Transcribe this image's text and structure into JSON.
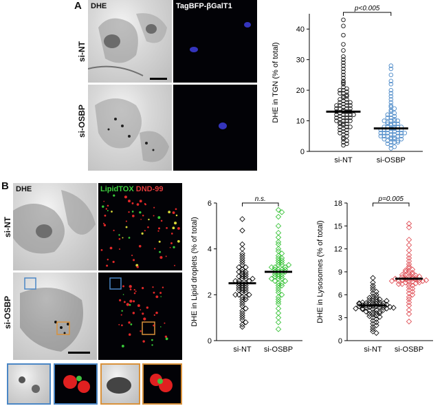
{
  "panelA": {
    "letter": "A",
    "col1_label": "DHE",
    "col2_label": "TagBFP-βGalT1",
    "row1_label": "si-NT",
    "row2_label": "si-OSBP"
  },
  "panelB": {
    "letter": "B",
    "col1_label": "DHE",
    "col2_label_green": "LipidTOX",
    "col2_label_red": "DND-99",
    "row1_label": "si-NT",
    "row2_label": "si-OSBP"
  },
  "colors": {
    "siNT": "#111111",
    "siOSBP_blue": "#4a88c7",
    "siOSBP_green": "#3ec43e",
    "siOSBP_red": "#e0535a",
    "inset_blue": "#4a86c5",
    "inset_orange": "#d9913a"
  },
  "chart_data": [
    {
      "type": "scatter",
      "id": "tgn",
      "categories": [
        "si-NT",
        "si-OSBP"
      ],
      "ylabel": "DHE in TGN (% of total)",
      "ylim": [
        0,
        45
      ],
      "yticks": [
        0,
        10,
        20,
        30,
        40
      ],
      "annotation": "p<0.005",
      "means": [
        13,
        7.5
      ],
      "series": [
        {
          "name": "si-NT",
          "values": [
            43,
            41,
            38,
            35,
            33,
            31,
            30,
            29,
            28,
            27,
            26,
            25,
            24,
            23,
            22.5,
            22,
            21,
            20.5,
            20,
            19.5,
            19,
            18.5,
            18,
            17.5,
            17,
            16.5,
            16,
            16,
            15.5,
            15,
            15,
            14.5,
            14,
            14,
            13.5,
            13,
            13,
            12.5,
            12,
            12,
            11.5,
            11,
            11,
            10.5,
            10,
            10,
            9.5,
            9,
            9,
            8.5,
            8,
            8,
            7.5,
            7,
            7,
            6.5,
            6,
            6,
            5.5,
            5,
            4.5,
            4,
            3.5,
            3,
            2.5,
            2,
            14,
            13,
            12,
            11,
            15,
            16,
            17,
            12,
            13,
            10,
            9,
            8,
            11,
            14,
            18,
            19,
            20,
            15,
            12,
            10
          ]
        },
        {
          "name": "si-OSBP",
          "values": [
            28,
            27,
            25,
            23,
            22,
            20,
            19,
            18,
            17,
            16,
            15,
            14.5,
            14,
            13.5,
            13,
            12.5,
            12,
            11.5,
            11,
            10.5,
            10,
            10,
            9.5,
            9,
            9,
            8.5,
            8,
            8,
            7.5,
            7.5,
            7,
            7,
            6.5,
            6.5,
            6,
            6,
            5.5,
            5.5,
            5,
            5,
            4.5,
            4.5,
            4,
            4,
            3.5,
            3.5,
            3,
            3,
            2.5,
            2,
            1.5,
            1,
            8,
            7,
            6,
            5,
            9,
            10,
            11,
            6,
            7,
            8,
            5,
            4,
            3,
            6,
            7,
            8,
            9,
            10,
            12,
            4,
            5,
            6
          ]
        }
      ]
    },
    {
      "type": "scatter",
      "id": "ld",
      "categories": [
        "si-NT",
        "si-OSBP"
      ],
      "ylabel": "DHE in Lipid droplets (% of total)",
      "ylim": [
        0,
        6
      ],
      "yticks": [
        0,
        2,
        4,
        6
      ],
      "annotation": "n.s.",
      "means": [
        2.5,
        3.0
      ],
      "series": [
        {
          "name": "si-NT",
          "values": [
            5.3,
            4.8,
            4.2,
            4.0,
            3.8,
            3.7,
            3.6,
            3.5,
            3.4,
            3.3,
            3.2,
            3.1,
            3.0,
            3.0,
            2.9,
            2.8,
            2.8,
            2.7,
            2.7,
            2.6,
            2.6,
            2.5,
            2.5,
            2.4,
            2.4,
            2.3,
            2.3,
            2.2,
            2.2,
            2.1,
            2.1,
            2.0,
            2.0,
            1.9,
            1.8,
            1.7,
            1.6,
            1.5,
            1.4,
            1.3,
            1.2,
            1.1,
            1.0,
            0.9,
            0.8,
            0.7,
            0.6,
            2.5,
            2.6,
            2.8,
            3.0,
            2.4,
            2.2,
            1.8,
            3.2,
            2.9,
            2.0,
            2.7,
            2.3,
            1.9
          ]
        },
        {
          "name": "si-OSBP",
          "values": [
            5.7,
            5.6,
            5.4,
            5.0,
            4.7,
            4.5,
            4.3,
            4.2,
            4.0,
            3.9,
            3.8,
            3.7,
            3.6,
            3.5,
            3.4,
            3.3,
            3.3,
            3.2,
            3.2,
            3.1,
            3.1,
            3.0,
            3.0,
            2.9,
            2.9,
            2.8,
            2.8,
            2.7,
            2.7,
            2.6,
            2.5,
            2.4,
            2.3,
            2.2,
            2.1,
            2.0,
            1.9,
            1.8,
            1.7,
            1.6,
            1.4,
            1.2,
            1.0,
            0.8,
            0.5,
            3.0,
            3.1,
            3.2,
            2.8,
            2.9,
            3.4,
            3.5,
            2.6,
            2.5,
            3.6,
            2.4,
            3.0,
            3.3,
            2.7,
            3.1
          ]
        }
      ]
    },
    {
      "type": "scatter",
      "id": "lyso",
      "categories": [
        "si-NT",
        "si-OSBP"
      ],
      "ylabel": "DHE in Lysosomes (% of total)",
      "ylim": [
        0,
        18
      ],
      "yticks": [
        0,
        3,
        6,
        9,
        12,
        15,
        18
      ],
      "annotation": "p=0.005",
      "means": [
        4.6,
        8.1
      ],
      "series": [
        {
          "name": "si-NT",
          "values": [
            8.2,
            7.6,
            7.2,
            6.9,
            6.6,
            6.4,
            6.2,
            6.0,
            5.8,
            5.7,
            5.6,
            5.5,
            5.4,
            5.3,
            5.2,
            5.1,
            5.0,
            5.0,
            4.9,
            4.9,
            4.8,
            4.8,
            4.7,
            4.7,
            4.6,
            4.6,
            4.5,
            4.5,
            4.4,
            4.4,
            4.3,
            4.3,
            4.2,
            4.2,
            4.1,
            4.0,
            3.9,
            3.8,
            3.7,
            3.6,
            3.5,
            3.4,
            3.3,
            3.2,
            3.1,
            3.0,
            2.8,
            2.6,
            2.4,
            2.2,
            2.0,
            1.8,
            1.5,
            1.2,
            1.0,
            4.6,
            4.7,
            4.5,
            4.8,
            4.4,
            5.0,
            4.2,
            3.8,
            5.2,
            4.0,
            4.9,
            4.3,
            3.6,
            5.4,
            4.1
          ]
        },
        {
          "name": "si-OSBP",
          "values": [
            15.3,
            14.8,
            13.2,
            12.5,
            11.8,
            11.2,
            10.8,
            10.4,
            10.0,
            9.7,
            9.5,
            9.3,
            9.1,
            8.9,
            8.8,
            8.7,
            8.6,
            8.5,
            8.4,
            8.3,
            8.2,
            8.2,
            8.1,
            8.1,
            8.0,
            8.0,
            7.9,
            7.9,
            7.8,
            7.8,
            7.7,
            7.7,
            7.6,
            7.5,
            7.4,
            7.3,
            7.2,
            7.0,
            6.8,
            6.6,
            6.4,
            6.2,
            6.0,
            5.7,
            5.4,
            5.0,
            4.6,
            4.0,
            3.5,
            2.5,
            8.1,
            8.3,
            7.9,
            8.6,
            7.6,
            9.0,
            8.4,
            7.8,
            9.2,
            7.4
          ]
        }
      ]
    }
  ]
}
